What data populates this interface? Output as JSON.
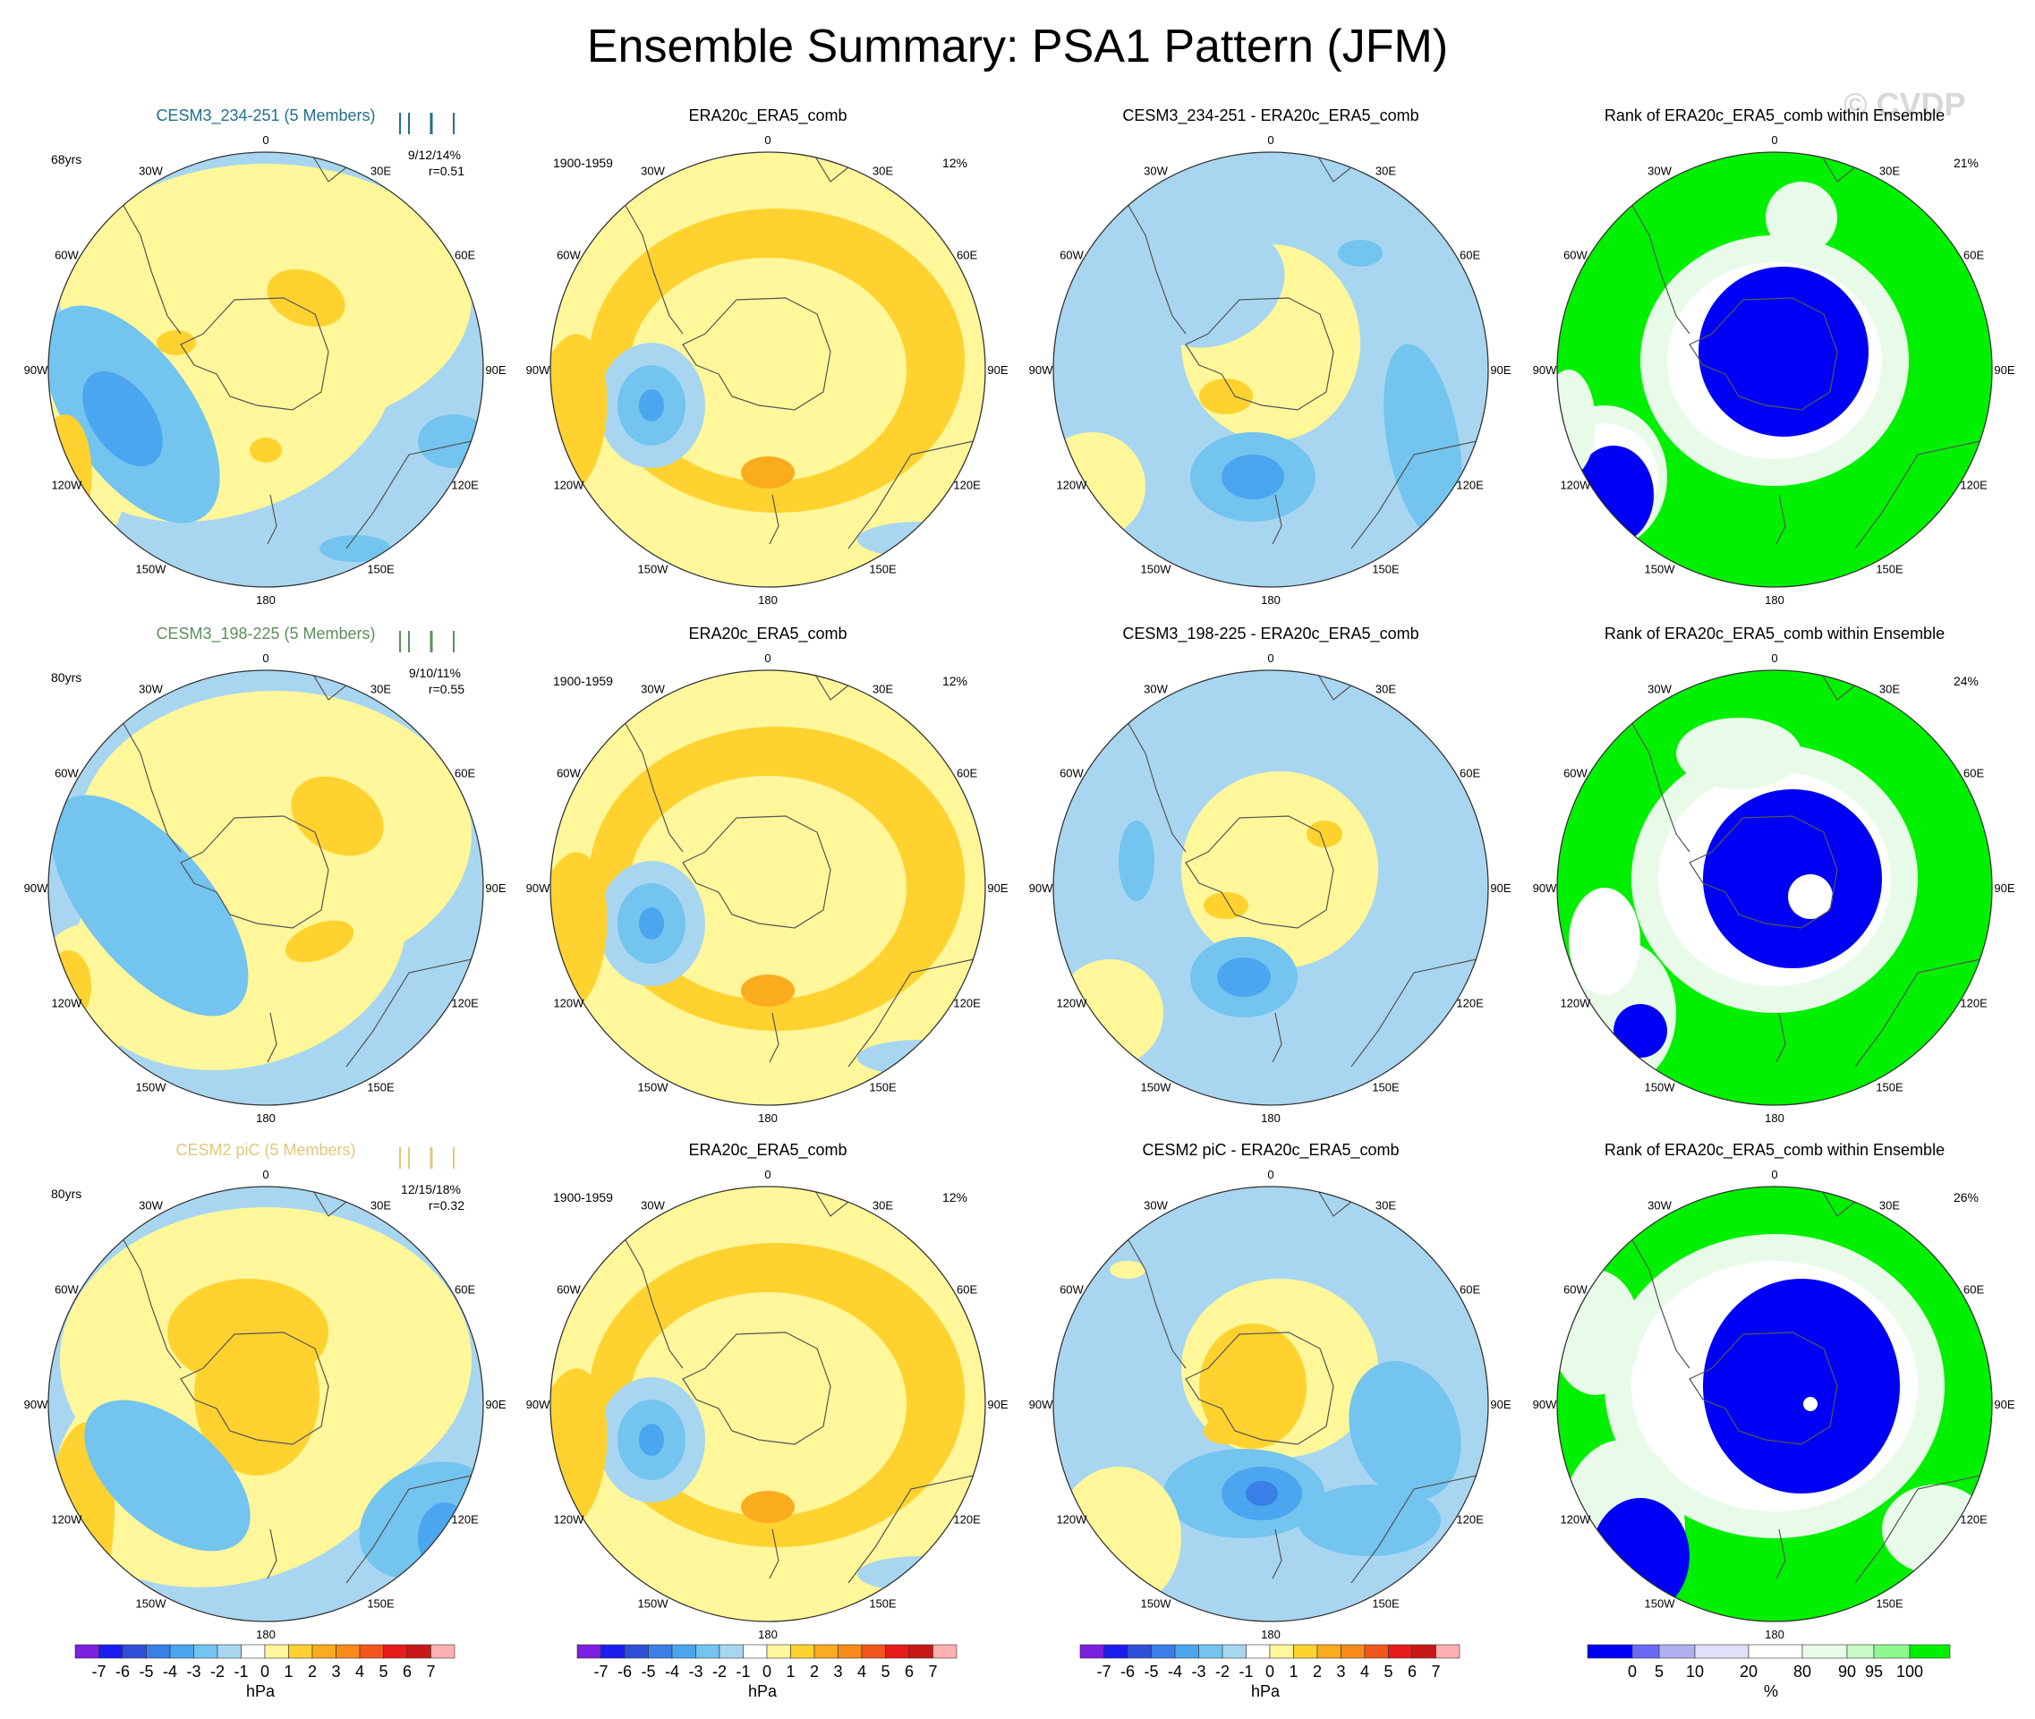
{
  "title": "Ensemble Summary: PSA1 Pattern (JFM)",
  "watermark": "© CVDP",
  "longitude_labels": {
    "0": "0",
    "30E": "30E",
    "60E": "60E",
    "90E": "90E",
    "120E": "120E",
    "150E": "150E",
    "180": "180",
    "150W": "150W",
    "120W": "120W",
    "90W": "90W",
    "60W": "60W",
    "30W": "30W"
  },
  "colors": {
    "diff_scale": [
      "#7c1fe0",
      "#1c1cf0",
      "#2f4fd8",
      "#3a7fe8",
      "#4aa6ee",
      "#73c4ef",
      "#a8d6f0",
      "#ffffff",
      "#fff79a",
      "#ffd230",
      "#fbab1e",
      "#f88a1a",
      "#f2561a",
      "#e81a1a",
      "#c81818",
      "#ffb0b0"
    ],
    "rank_scale": [
      "#0000f5",
      "#6a6af5",
      "#b0b0f0",
      "#e0e0f8",
      "#ffffff",
      "#e8fbe8",
      "#c8fac8",
      "#90f890",
      "#00f000"
    ],
    "model_title_row1": "#1f6f8b",
    "model_title_row2": "#5c8f5c",
    "model_title_row3": "#e0c878"
  },
  "rows": [
    {
      "model_title": "CESM3_234-251 (5 Members)",
      "years": "68yrs",
      "stats": "9/12/14%",
      "corr": "r=0.51",
      "obs_title": "ERA20c_ERA5_comb",
      "obs_period": "1900-1959",
      "obs_pct": "12%",
      "diff_title": "CESM3_234-251 - ERA20c_ERA5_comb",
      "rank_title": "Rank of ERA20c_ERA5_comb within Ensemble",
      "rank_pct": "21%"
    },
    {
      "model_title": "CESM3_198-225 (5 Members)",
      "years": "80yrs",
      "stats": "9/10/11%",
      "corr": "r=0.55",
      "obs_title": "ERA20c_ERA5_comb",
      "obs_period": "1900-1959",
      "obs_pct": "12%",
      "diff_title": "CESM3_198-225 - ERA20c_ERA5_comb",
      "rank_title": "Rank of ERA20c_ERA5_comb within Ensemble",
      "rank_pct": "24%"
    },
    {
      "model_title": "CESM2 piC (5 Members)",
      "years": "80yrs",
      "stats": "12/15/18%",
      "corr": "r=0.32",
      "obs_title": "ERA20c_ERA5_comb",
      "obs_period": "1900-1959",
      "obs_pct": "12%",
      "diff_title": "CESM2 piC - ERA20c_ERA5_comb",
      "rank_title": "Rank of ERA20c_ERA5_comb within Ensemble",
      "rank_pct": "26%"
    }
  ],
  "colorbars": {
    "hpa_ticks": [
      "-7",
      "-6",
      "-5",
      "-4",
      "-3",
      "-2",
      "-1",
      "0",
      "1",
      "2",
      "3",
      "4",
      "5",
      "6",
      "7"
    ],
    "hpa_unit": "hPa",
    "rank_ticks": [
      "0",
      "5",
      "10",
      "20",
      "80",
      "90",
      "95",
      "100"
    ],
    "rank_unit": "%"
  }
}
